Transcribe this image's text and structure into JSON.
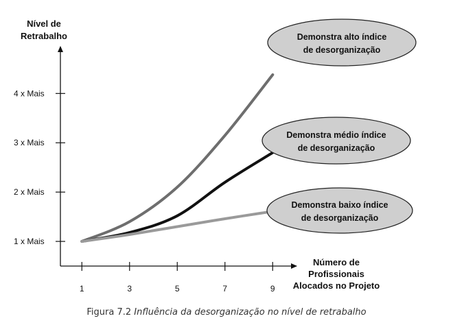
{
  "chart_data": {
    "type": "line",
    "x": [
      1,
      3,
      5,
      7,
      9
    ],
    "xticks": [
      "1",
      "3",
      "5",
      "7",
      "9"
    ],
    "yticks": [
      "1 x  Mais",
      "2 x  Mais",
      "3 x  Mais",
      "4 x  Mais"
    ],
    "ytick_values": [
      1,
      2,
      3,
      4
    ],
    "ylabel": [
      "Nível de",
      "Retrabalho"
    ],
    "xlabel": [
      "Número de",
      "Profissionais",
      "Alocados no Projeto"
    ],
    "xlim": [
      0.1,
      10
    ],
    "ylim": [
      0.5,
      4.95
    ],
    "grid": false,
    "legend": "none",
    "series": [
      {
        "label": [
          "Demonstra alto índice",
          "de desorganização"
        ],
        "color": "#6e6e6e",
        "values": [
          1.0,
          1.4,
          2.1,
          3.15,
          4.38
        ]
      },
      {
        "label": [
          "Demonstra médio índice",
          "de desorganização"
        ],
        "color": "#111111",
        "values": [
          1.0,
          1.18,
          1.52,
          2.2,
          2.8
        ]
      },
      {
        "label": [
          "Demonstra baixo índice",
          "de desorganização"
        ],
        "color": "#9a9a9a",
        "values": [
          1.0,
          1.14,
          1.3,
          1.46,
          1.61
        ]
      }
    ]
  },
  "caption": {
    "number": "Figura 7.2",
    "text": "Influência da desorganização no nível de retrabalho"
  }
}
